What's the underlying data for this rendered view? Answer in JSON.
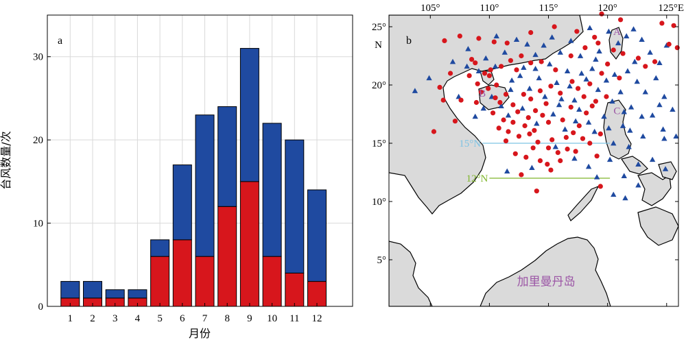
{
  "colors": {
    "series_a": "#1f4aa0",
    "series_b": "#d7161c",
    "grid": "#d9d9d9",
    "land": "#dadada",
    "label_purple": "#9b55a5",
    "line_15n": "#7ec3e4",
    "line_12n": "#7fb52b"
  },
  "chart_data": [
    {
      "type": "bar",
      "panel": "a",
      "stacked": true,
      "categories": [
        "1",
        "2",
        "3",
        "4",
        "5",
        "6",
        "7",
        "8",
        "9",
        "10",
        "11",
        "12"
      ],
      "series": [
        {
          "values": [
            1,
            1,
            1,
            1,
            6,
            8,
            6,
            12,
            15,
            6,
            4,
            3
          ]
        },
        {
          "values": [
            2,
            2,
            1,
            1,
            2,
            9,
            17,
            12,
            16,
            16,
            16,
            11
          ]
        }
      ],
      "totals": [
        3,
        3,
        2,
        2,
        8,
        17,
        23,
        24,
        31,
        22,
        20,
        14
      ],
      "xlabel": "月份",
      "ylabel": "台风数量/次",
      "ylim": [
        0,
        35
      ],
      "yticks": [
        "0",
        "10",
        "20",
        "30"
      ],
      "grid": true
    },
    {
      "type": "scatter",
      "panel": "b",
      "xlim": [
        101.5,
        126
      ],
      "ylim": [
        1,
        26
      ],
      "xticks": [
        "105°",
        "110°",
        "115°",
        "120°",
        "125°E"
      ],
      "yticks": [
        "5°",
        "10°",
        "15°",
        "20°",
        "25°N"
      ],
      "lat_lines": [
        {
          "label": "15°N",
          "lat": 15,
          "lon_from": 109.4,
          "lon_to": 120.2
        },
        {
          "label": "12°N",
          "lat": 12,
          "lon_from": 110.0,
          "lon_to": 120.2
        }
      ],
      "region_labels": [
        {
          "text": "A",
          "lon": 120.8,
          "lat": 24.3
        },
        {
          "text": "B",
          "lon": 109.4,
          "lat": 19.0
        },
        {
          "text": "C",
          "lon": 120.8,
          "lat": 17.5
        },
        {
          "text": "加里曼丹岛",
          "lon": 114.8,
          "lat": 2.8
        }
      ],
      "circles": [
        [
          106.2,
          23.8
        ],
        [
          106.7,
          21.0
        ],
        [
          105.8,
          19.8
        ],
        [
          106.1,
          18.7
        ],
        [
          107.6,
          18.7
        ],
        [
          105.3,
          16.0
        ],
        [
          107.1,
          16.9
        ],
        [
          108.3,
          20.8
        ],
        [
          108.5,
          22.2
        ],
        [
          109.1,
          24.0
        ],
        [
          108.8,
          21.9
        ],
        [
          109.6,
          21.0
        ],
        [
          110.0,
          20.8
        ],
        [
          110.1,
          21.3
        ],
        [
          109.3,
          19.4
        ],
        [
          108.9,
          18.5
        ],
        [
          110.5,
          18.9
        ],
        [
          110.9,
          18.5
        ],
        [
          110.3,
          17.6
        ],
        [
          111.2,
          17.0
        ],
        [
          112.0,
          16.8
        ],
        [
          111.6,
          16.0
        ],
        [
          112.5,
          15.6
        ],
        [
          113.0,
          16.5
        ],
        [
          113.4,
          15.8
        ],
        [
          114.1,
          15.1
        ],
        [
          115.0,
          14.6
        ],
        [
          115.8,
          14.2
        ],
        [
          116.6,
          14.5
        ],
        [
          117.3,
          14.3
        ],
        [
          113.1,
          13.8
        ],
        [
          112.2,
          14.1
        ],
        [
          114.3,
          13.5
        ],
        [
          114.9,
          13.2
        ],
        [
          116.0,
          13.5
        ],
        [
          117.1,
          15.9
        ],
        [
          118.5,
          15.0
        ],
        [
          119.1,
          13.9
        ],
        [
          112.9,
          19.2
        ],
        [
          113.5,
          18.8
        ],
        [
          114.3,
          19.5
        ],
        [
          115.2,
          19.9
        ],
        [
          116.0,
          19.3
        ],
        [
          117.0,
          20.3
        ],
        [
          118.0,
          19.0
        ],
        [
          118.5,
          20.1
        ],
        [
          119.5,
          21.0
        ],
        [
          120.0,
          21.8
        ],
        [
          121.3,
          22.7
        ],
        [
          122.6,
          22.3
        ],
        [
          123.2,
          21.6
        ],
        [
          114.5,
          17.4
        ],
        [
          115.0,
          16.8
        ],
        [
          116.2,
          17.0
        ],
        [
          117.6,
          16.5
        ],
        [
          118.2,
          17.6
        ],
        [
          119.0,
          18.6
        ],
        [
          112.3,
          21.3
        ],
        [
          113.5,
          21.9
        ],
        [
          114.4,
          22.0
        ],
        [
          115.6,
          21.3
        ],
        [
          116.9,
          22.5
        ],
        [
          118.1,
          23.2
        ],
        [
          119.2,
          23.6
        ],
        [
          119.5,
          26.1
        ],
        [
          121.1,
          25.6
        ],
        [
          124.6,
          25.3
        ],
        [
          125.6,
          25.1
        ],
        [
          125.9,
          23.2
        ],
        [
          125.2,
          23.5
        ],
        [
          111.5,
          23.6
        ],
        [
          113.5,
          24.5
        ],
        [
          115.5,
          25.0
        ],
        [
          117.4,
          24.6
        ],
        [
          118.9,
          24.1
        ],
        [
          107.5,
          24.2
        ],
        [
          110.4,
          23.7
        ],
        [
          111.0,
          21.6
        ],
        [
          111.8,
          22.1
        ],
        [
          112.7,
          22.5
        ],
        [
          113.9,
          17.8
        ],
        [
          114.8,
          18.4
        ],
        [
          115.3,
          15.3
        ],
        [
          116.5,
          15.5
        ],
        [
          117.9,
          15.4
        ],
        [
          119.4,
          15.8
        ],
        [
          110.6,
          20.0
        ],
        [
          111.4,
          19.2
        ],
        [
          112.0,
          18.3
        ],
        [
          113.3,
          17.2
        ],
        [
          112.7,
          12.3
        ],
        [
          114.0,
          10.9
        ],
        [
          119.4,
          11.3
        ],
        [
          115.2,
          12.7
        ],
        [
          113.7,
          14.6
        ],
        [
          111.4,
          15.2
        ],
        [
          109.0,
          20.1
        ],
        [
          109.9,
          19.7
        ],
        [
          110.8,
          16.3
        ],
        [
          112.4,
          17.7
        ],
        [
          113.8,
          16.1
        ],
        [
          116.9,
          18.1
        ],
        [
          117.5,
          19.7
        ],
        [
          118.7,
          18.2
        ],
        [
          119.9,
          19.0
        ],
        [
          121.0,
          20.6
        ],
        [
          124.0,
          22.0
        ],
        [
          120.5,
          23.0
        ]
      ],
      "triangles": [
        [
          103.7,
          19.5
        ],
        [
          104.9,
          20.6
        ],
        [
          107.4,
          19.0
        ],
        [
          108.2,
          23.1
        ],
        [
          109.7,
          22.3
        ],
        [
          110.6,
          24.2
        ],
        [
          111.3,
          22.8
        ],
        [
          112.3,
          23.9
        ],
        [
          113.2,
          23.5
        ],
        [
          113.9,
          22.6
        ],
        [
          114.6,
          23.4
        ],
        [
          115.3,
          24.1
        ],
        [
          116.0,
          22.8
        ],
        [
          116.9,
          23.8
        ],
        [
          117.7,
          22.5
        ],
        [
          118.5,
          24.9
        ],
        [
          119.3,
          22.9
        ],
        [
          120.1,
          24.6
        ],
        [
          120.9,
          23.6
        ],
        [
          121.6,
          24.2
        ],
        [
          122.2,
          24.8
        ],
        [
          122.9,
          23.9
        ],
        [
          123.6,
          22.8
        ],
        [
          124.4,
          21.9
        ],
        [
          125.0,
          23.4
        ],
        [
          121.7,
          21.2
        ],
        [
          122.5,
          20.3
        ],
        [
          123.2,
          19.4
        ],
        [
          124.1,
          20.6
        ],
        [
          124.8,
          19.0
        ],
        [
          125.5,
          17.9
        ],
        [
          124.7,
          16.2
        ],
        [
          122.0,
          18.1
        ],
        [
          122.9,
          17.3
        ],
        [
          121.3,
          16.5
        ],
        [
          120.5,
          15.0
        ],
        [
          121.8,
          14.7
        ],
        [
          122.6,
          13.2
        ],
        [
          121.4,
          12.2
        ],
        [
          120.2,
          13.6
        ],
        [
          119.1,
          12.1
        ],
        [
          118.4,
          16.8
        ],
        [
          117.6,
          17.9
        ],
        [
          116.8,
          19.9
        ],
        [
          115.9,
          18.3
        ],
        [
          115.1,
          21.8
        ],
        [
          114.2,
          20.6
        ],
        [
          113.4,
          19.7
        ],
        [
          112.6,
          20.8
        ],
        [
          111.8,
          19.6
        ],
        [
          111.0,
          18.2
        ],
        [
          110.2,
          19.0
        ],
        [
          109.5,
          18.0
        ],
        [
          108.8,
          17.3
        ],
        [
          111.6,
          17.4
        ],
        [
          112.8,
          18.0
        ],
        [
          114.0,
          16.7
        ],
        [
          115.4,
          17.5
        ],
        [
          116.4,
          16.2
        ],
        [
          117.3,
          16.9
        ],
        [
          118.9,
          16.0
        ],
        [
          119.7,
          17.3
        ],
        [
          120.4,
          18.6
        ],
        [
          121.1,
          19.4
        ],
        [
          122.3,
          22.0
        ],
        [
          119.9,
          20.4
        ],
        [
          118.7,
          21.4
        ],
        [
          117.8,
          21.0
        ],
        [
          116.6,
          21.2
        ],
        [
          115.7,
          20.2
        ],
        [
          114.7,
          19.0
        ],
        [
          113.9,
          21.4
        ],
        [
          112.9,
          21.5
        ],
        [
          111.9,
          20.4
        ],
        [
          110.5,
          21.6
        ],
        [
          109.1,
          21.2
        ],
        [
          108.1,
          21.6
        ],
        [
          106.9,
          22.0
        ],
        [
          123.8,
          17.4
        ],
        [
          124.8,
          15.4
        ],
        [
          125.8,
          15.6
        ],
        [
          123.0,
          15.6
        ],
        [
          121.9,
          16.1
        ],
        [
          123.8,
          13.6
        ],
        [
          124.9,
          12.8
        ],
        [
          122.6,
          11.4
        ],
        [
          121.5,
          10.3
        ],
        [
          120.5,
          10.6
        ],
        [
          119.0,
          22.2
        ],
        [
          118.2,
          20.5
        ],
        [
          117.2,
          18.7
        ],
        [
          116.1,
          18.8
        ],
        [
          115.6,
          14.7
        ],
        [
          117.2,
          13.7
        ],
        [
          118.4,
          13.0
        ],
        [
          113.6,
          12.9
        ],
        [
          111.5,
          12.6
        ],
        [
          120.1,
          16.3
        ],
        [
          119.2,
          19.6
        ],
        [
          120.6,
          20.9
        ],
        [
          121.4,
          17.7
        ],
        [
          124.4,
          18.3
        ]
      ]
    }
  ]
}
